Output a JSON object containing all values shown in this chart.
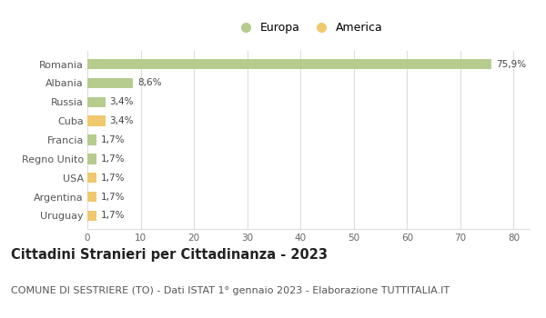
{
  "categories": [
    "Romania",
    "Albania",
    "Russia",
    "Cuba",
    "Francia",
    "Regno Unito",
    "USA",
    "Argentina",
    "Uruguay"
  ],
  "values": [
    75.9,
    8.6,
    3.4,
    3.4,
    1.7,
    1.7,
    1.7,
    1.7,
    1.7
  ],
  "labels": [
    "75,9%",
    "8,6%",
    "3,4%",
    "3,4%",
    "1,7%",
    "1,7%",
    "1,7%",
    "1,7%",
    "1,7%"
  ],
  "colors": [
    "#b5cc8e",
    "#b5cc8e",
    "#b5cc8e",
    "#f0c96e",
    "#b5cc8e",
    "#b5cc8e",
    "#f0c96e",
    "#f0c96e",
    "#f0c96e"
  ],
  "legend_europa_color": "#b5cc8e",
  "legend_america_color": "#f0c96e",
  "xlim": [
    0,
    83
  ],
  "xticks": [
    0,
    10,
    20,
    30,
    40,
    50,
    60,
    70,
    80
  ],
  "title": "Cittadini Stranieri per Cittadinanza - 2023",
  "subtitle": "COMUNE DI SESTRIERE (TO) - Dati ISTAT 1° gennaio 2023 - Elaborazione TUTTITALIA.IT",
  "title_fontsize": 10.5,
  "subtitle_fontsize": 8,
  "bar_height": 0.55,
  "background_color": "#ffffff",
  "grid_color": "#dddddd",
  "label_fontsize": 7.5,
  "axis_label_fontsize": 7.5,
  "yticklabel_fontsize": 8
}
